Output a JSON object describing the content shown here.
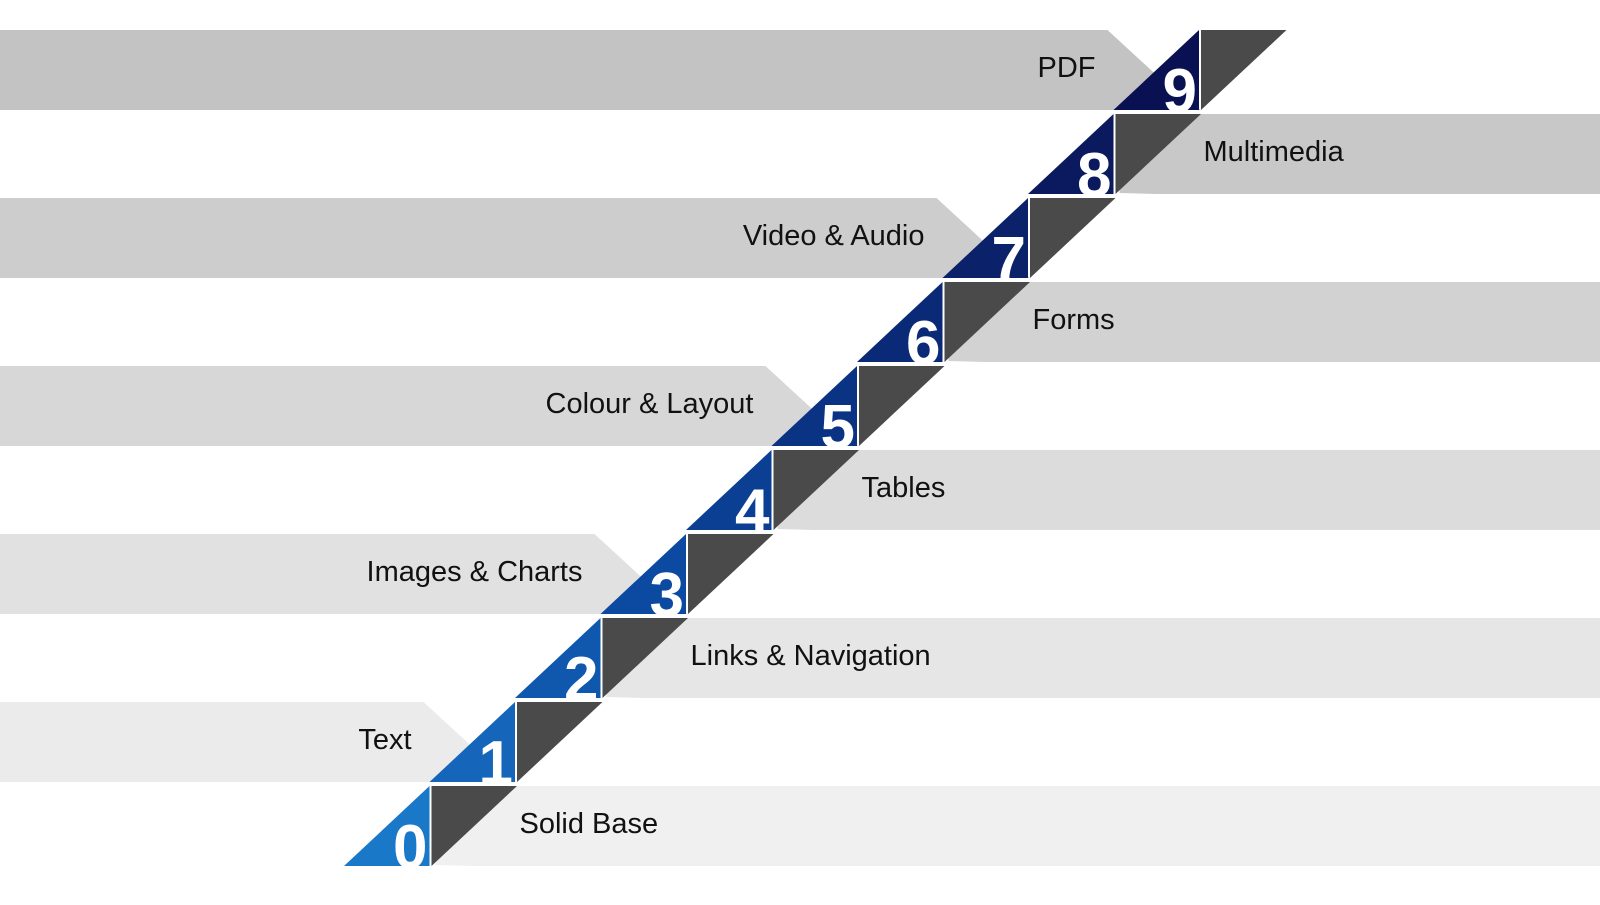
{
  "steps": [
    {
      "number": "0",
      "label": "Solid Base",
      "side": "right",
      "band_color": "#f0f0f0",
      "tri_color": "#1a78c8"
    },
    {
      "number": "1",
      "label": "Text",
      "side": "left",
      "band_color": "#ebebeb",
      "tri_color": "#1566bb"
    },
    {
      "number": "2",
      "label": "Links & Navigation",
      "side": "right",
      "band_color": "#e6e6e6",
      "tri_color": "#0f58ad"
    },
    {
      "number": "3",
      "label": "Images & Charts",
      "side": "left",
      "band_color": "#e1e1e1",
      "tri_color": "#0b4aa0"
    },
    {
      "number": "4",
      "label": "Tables",
      "side": "right",
      "band_color": "#dcdcdc",
      "tri_color": "#0a3f94"
    },
    {
      "number": "5",
      "label": "Colour & Layout",
      "side": "left",
      "band_color": "#d7d7d7",
      "tri_color": "#0a3384"
    },
    {
      "number": "6",
      "label": "Forms",
      "side": "right",
      "band_color": "#d2d2d2",
      "tri_color": "#0a2a78"
    },
    {
      "number": "7",
      "label": "Video & Audio",
      "side": "left",
      "band_color": "#cdcdcd",
      "tri_color": "#0b216a"
    },
    {
      "number": "8",
      "label": "Multimedia",
      "side": "right",
      "band_color": "#c8c8c8",
      "tri_color": "#0b195e"
    },
    {
      "number": "9",
      "label": "PDF",
      "side": "left",
      "band_color": "#c3c3c3",
      "tri_color": "#0a1152"
    }
  ],
  "colors": {
    "dark_triangle": "#4a4a4a",
    "background": "#ffffff"
  }
}
